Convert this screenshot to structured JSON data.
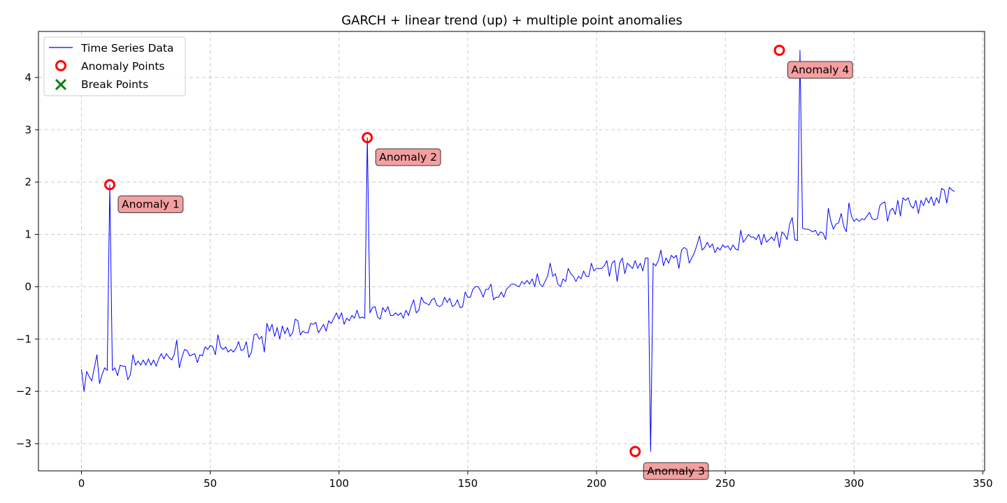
{
  "chart_data": {
    "type": "line",
    "title": "GARCH + linear trend (up) + multiple point anomalies",
    "xlabel": "",
    "ylabel": "",
    "xlim": [
      -16.7,
      350.7
    ],
    "ylim": [
      -3.52,
      4.88
    ],
    "xticks": [
      0,
      50,
      100,
      150,
      200,
      250,
      300,
      350
    ],
    "yticks": [
      -3,
      -2,
      -1,
      0,
      1,
      2,
      3,
      4
    ],
    "xtick_labels": [
      "0",
      "50",
      "100",
      "150",
      "200",
      "250",
      "300",
      "350"
    ],
    "ytick_labels": [
      "−3",
      "−2",
      "−1",
      "0",
      "1",
      "2",
      "3",
      "4"
    ],
    "grid": true,
    "legend_position": "top-left",
    "legend": [
      {
        "label": "Time Series Data",
        "marker": "line",
        "color": "#0000ff"
      },
      {
        "label": "Anomaly Points",
        "marker": "circle",
        "color": "#ff0000"
      },
      {
        "label": "Break Points",
        "marker": "x",
        "color": "#008000"
      }
    ],
    "series": [
      {
        "name": "Time Series Data",
        "color": "#0000ff",
        "x_start": 0,
        "values": [
          -1.58,
          -2.0,
          -1.62,
          -1.72,
          -1.8,
          -1.55,
          -1.3,
          -1.85,
          -1.68,
          -1.55,
          -1.6,
          1.95,
          -1.6,
          -1.55,
          -1.7,
          -1.5,
          -1.52,
          -1.52,
          -1.78,
          -1.68,
          -1.3,
          -1.5,
          -1.42,
          -1.5,
          -1.4,
          -1.5,
          -1.38,
          -1.5,
          -1.4,
          -1.52,
          -1.38,
          -1.28,
          -1.38,
          -1.28,
          -1.35,
          -1.4,
          -1.3,
          -1.02,
          -1.55,
          -1.35,
          -1.2,
          -1.22,
          -1.32,
          -1.3,
          -1.28,
          -1.45,
          -1.3,
          -1.32,
          -1.15,
          -1.2,
          -1.12,
          -1.15,
          -1.3,
          -0.92,
          -1.15,
          -1.2,
          -1.15,
          -1.25,
          -1.2,
          -1.25,
          -1.18,
          -1.05,
          -1.22,
          -1.2,
          -1.05,
          -1.35,
          -1.25,
          -0.92,
          -0.9,
          -1.0,
          -0.95,
          -1.25,
          -0.7,
          -0.85,
          -0.72,
          -0.95,
          -0.78,
          -1.0,
          -0.75,
          -0.9,
          -0.78,
          -0.95,
          -0.88,
          -0.62,
          -0.65,
          -0.92,
          -0.85,
          -0.88,
          -0.88,
          -0.7,
          -0.72,
          -0.68,
          -0.88,
          -0.8,
          -0.72,
          -0.85,
          -0.65,
          -0.7,
          -0.6,
          -0.5,
          -0.62,
          -0.5,
          -0.72,
          -0.6,
          -0.65,
          -0.55,
          -0.6,
          -0.45,
          -0.6,
          -0.58,
          -0.6,
          2.85,
          -0.5,
          -0.4,
          -0.38,
          -0.58,
          -0.62,
          -0.4,
          -0.48,
          -0.38,
          -0.55,
          -0.55,
          -0.5,
          -0.55,
          -0.5,
          -0.6,
          -0.45,
          -0.55,
          -0.38,
          -0.25,
          -0.5,
          -0.45,
          -0.2,
          -0.3,
          -0.32,
          -0.35,
          -0.25,
          -0.22,
          -0.35,
          -0.38,
          -0.35,
          -0.2,
          -0.3,
          -0.22,
          -0.38,
          -0.35,
          -0.25,
          -0.4,
          -0.38,
          -0.1,
          -0.2,
          -0.2,
          -0.05,
          0.0,
          0.0,
          -0.08,
          -0.2,
          -0.05,
          -0.05,
          0.05,
          -0.25,
          -0.2,
          -0.2,
          -0.1,
          -0.2,
          -0.05,
          0.0,
          0.05,
          0.05,
          0.02,
          0.0,
          0.1,
          0.05,
          0.12,
          0.05,
          0.15,
          0.0,
          0.25,
          0.05,
          0.0,
          0.1,
          0.2,
          0.45,
          0.2,
          0.25,
          0.05,
          0.0,
          0.15,
          0.1,
          0.35,
          0.25,
          0.2,
          0.1,
          0.2,
          0.15,
          0.3,
          0.2,
          0.2,
          0.45,
          0.3,
          0.35,
          0.35,
          0.35,
          0.4,
          0.5,
          0.2,
          0.45,
          0.5,
          0.1,
          0.45,
          0.55,
          0.25,
          0.45,
          0.4,
          0.35,
          0.5,
          0.35,
          0.45,
          0.3,
          0.55,
          0.55,
          -3.15,
          0.45,
          0.4,
          0.5,
          0.7,
          0.4,
          0.55,
          0.45,
          0.6,
          0.55,
          0.6,
          0.35,
          0.7,
          0.75,
          0.72,
          0.45,
          0.55,
          0.65,
          0.8,
          0.97,
          0.7,
          0.75,
          0.85,
          0.75,
          0.82,
          0.65,
          0.75,
          0.7,
          0.8,
          0.75,
          0.78,
          0.7,
          0.8,
          0.72,
          0.7,
          1.08,
          0.85,
          0.92,
          1.0,
          0.95,
          0.95,
          0.9,
          1.0,
          0.8,
          1.0,
          0.85,
          0.9,
          0.95,
          0.88,
          1.05,
          0.75,
          1.05,
          1.0,
          0.9,
          1.2,
          1.32,
          0.9,
          0.88,
          4.52,
          1.12,
          1.1,
          1.1,
          1.08,
          1.05,
          1.08,
          0.98,
          1.05,
          1.02,
          0.9,
          1.5,
          1.25,
          1.1,
          1.2,
          1.22,
          1.4,
          1.15,
          1.05,
          1.6,
          1.35,
          1.25,
          1.3,
          1.25,
          1.3,
          1.28,
          1.35,
          1.42,
          1.3,
          1.28,
          1.3,
          1.55,
          1.6,
          1.62,
          1.25,
          1.45,
          1.5,
          1.38,
          1.65,
          1.35,
          1.7,
          1.65,
          1.7,
          1.55,
          1.5,
          1.65,
          1.4,
          1.65,
          1.55,
          1.7,
          1.6,
          1.72,
          1.55,
          1.7,
          1.6,
          1.88,
          1.85,
          1.6,
          1.9,
          1.85,
          1.82
        ]
      }
    ],
    "anomalies": [
      {
        "x": 11,
        "y": 1.95,
        "label": "Anomaly 1"
      },
      {
        "x": 111,
        "y": 2.85,
        "label": "Anomaly 2"
      },
      {
        "x": 215,
        "y": -3.15,
        "label": "Anomaly 3"
      },
      {
        "x": 271,
        "y": 4.52,
        "label": "Anomaly 4"
      }
    ],
    "break_points": []
  },
  "colors": {
    "line": "#0000ff",
    "anomaly": "#ff0000",
    "break": "#008000",
    "annotation_fill": "#f4a0a0",
    "grid": "#cccccc"
  }
}
